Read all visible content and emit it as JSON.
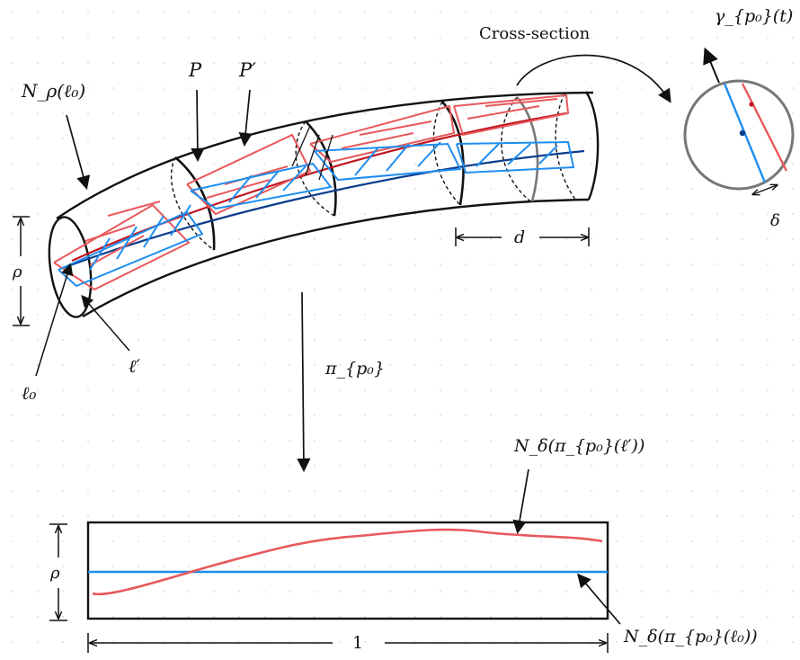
{
  "labels": {
    "cross_section": "Cross-section",
    "gamma": "γ_{p₀}(t)",
    "n_rho": "N_ρ(ℓ₀)",
    "p": "P",
    "p_prime": "P′",
    "d": "d",
    "delta": "δ",
    "rho_top": "ρ",
    "rho_bottom": "ρ",
    "ell0": "ℓ₀",
    "ell_prime": "ℓ′",
    "pi": "π_{p₀}",
    "n_delta_ell_prime": "N_δ(π_{p₀}(ℓ′))",
    "n_delta_ell0": "N_δ(π_{p₀}(ℓ₀))",
    "one": "1"
  },
  "colors": {
    "red": "#e8585c",
    "dark_red": "#c0141e",
    "blue": "#1e8ef0",
    "dark_blue": "#0b3d8c",
    "black": "#111111",
    "grid_dot": "#d6d6d6"
  }
}
